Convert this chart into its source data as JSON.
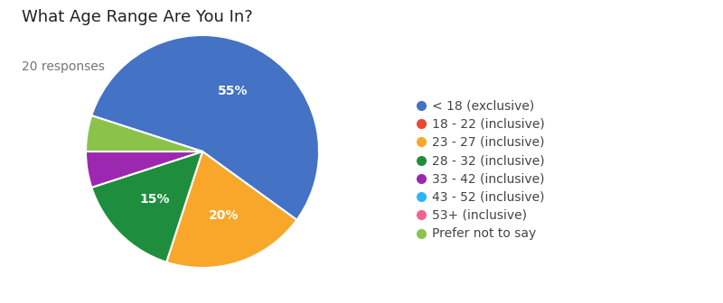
{
  "title": "What Age Range Are You In?",
  "subtitle": "20 responses",
  "labels": [
    "< 18 (exclusive)",
    "18 - 22 (inclusive)",
    "23 - 27 (inclusive)",
    "28 - 32 (inclusive)",
    "33 - 42 (inclusive)",
    "43 - 52 (inclusive)",
    "53+ (inclusive)",
    "Prefer not to say"
  ],
  "values": [
    55,
    0,
    20,
    15,
    5,
    0,
    0,
    5
  ],
  "colors": [
    "#4472C4",
    "#E84A30",
    "#F9A72B",
    "#1E8E3E",
    "#9C27B0",
    "#29B6F6",
    "#F06292",
    "#8BC34A"
  ],
  "pct_labels": [
    "55%",
    "",
    "20%",
    "15%",
    "",
    "",
    "",
    ""
  ],
  "title_fontsize": 13,
  "subtitle_fontsize": 10,
  "legend_fontsize": 10,
  "background_color": "#ffffff",
  "start_angle": 162
}
